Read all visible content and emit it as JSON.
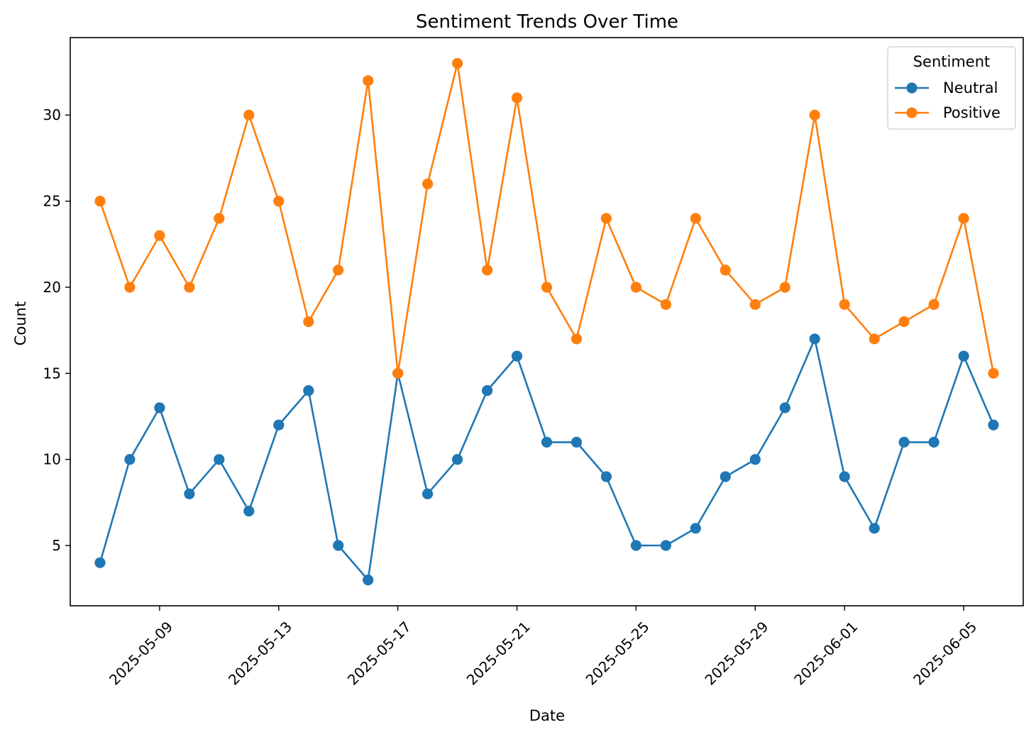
{
  "chart_data": {
    "type": "line",
    "title": "Sentiment Trends Over Time",
    "xlabel": "Date",
    "ylabel": "Count",
    "x": [
      "2025-05-07",
      "2025-05-08",
      "2025-05-09",
      "2025-05-10",
      "2025-05-11",
      "2025-05-12",
      "2025-05-13",
      "2025-05-14",
      "2025-05-15",
      "2025-05-16",
      "2025-05-17",
      "2025-05-18",
      "2025-05-19",
      "2025-05-20",
      "2025-05-21",
      "2025-05-22",
      "2025-05-23",
      "2025-05-24",
      "2025-05-25",
      "2025-05-26",
      "2025-05-27",
      "2025-05-28",
      "2025-05-29",
      "2025-05-30",
      "2025-05-31",
      "2025-06-01",
      "2025-06-02",
      "2025-06-03",
      "2025-06-04",
      "2025-06-05",
      "2025-06-06"
    ],
    "xlim": [
      "2025-05-06",
      "2025-06-07"
    ],
    "ylim": [
      1.5,
      34.5
    ],
    "x_ticks": [
      "2025-05-09",
      "2025-05-13",
      "2025-05-17",
      "2025-05-21",
      "2025-05-25",
      "2025-05-29",
      "2025-06-01",
      "2025-06-05"
    ],
    "y_ticks": [
      5,
      10,
      15,
      20,
      25,
      30
    ],
    "grid": false,
    "legend": {
      "title": "Sentiment",
      "position": "top-right"
    },
    "series": [
      {
        "name": "Neutral",
        "color": "#1f77b4",
        "marker": "circle",
        "values": [
          4,
          10,
          13,
          8,
          10,
          7,
          12,
          14,
          5,
          3,
          15,
          8,
          10,
          14,
          16,
          11,
          11,
          9,
          5,
          5,
          6,
          9,
          10,
          13,
          17,
          9,
          6,
          11,
          11,
          16,
          12
        ]
      },
      {
        "name": "Positive",
        "color": "#ff7f0e",
        "marker": "circle",
        "values": [
          25,
          20,
          23,
          20,
          24,
          30,
          25,
          18,
          21,
          32,
          15,
          26,
          33,
          21,
          31,
          20,
          17,
          24,
          20,
          19,
          24,
          21,
          19,
          20,
          30,
          19,
          17,
          18,
          19,
          24,
          15
        ]
      }
    ]
  }
}
